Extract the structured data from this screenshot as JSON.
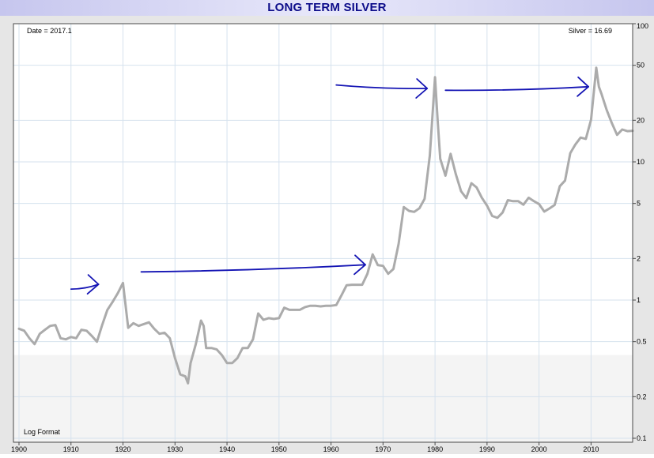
{
  "title": "LONG TERM SILVER",
  "date_readout": "Date = 2017.1",
  "value_readout": "Silver = 16.69",
  "scale_note": "Log Format",
  "colors": {
    "price_line": "#ababab",
    "annotation": "#1414b4",
    "grid": "#d6e2ee",
    "title_text": "#0d0d8a"
  },
  "chart_data": {
    "type": "line",
    "title": "LONG TERM SILVER",
    "y_scale": "log",
    "xlim": [
      1900,
      2018
    ],
    "ylim": [
      0.1,
      100
    ],
    "x_ticks": [
      1900,
      1910,
      1920,
      1930,
      1940,
      1950,
      1960,
      1970,
      1980,
      1990,
      2000,
      2010
    ],
    "y_ticks": [
      100,
      50,
      20,
      10,
      5,
      2,
      1,
      0.5,
      0.2,
      0.1
    ],
    "x_tick_labels": [
      "1900",
      "1910",
      "1920",
      "1930",
      "1940",
      "1950",
      "1960",
      "1970",
      "1980",
      "1990",
      "2000",
      "2010"
    ],
    "y_tick_labels": [
      "100",
      "50",
      "20",
      "10",
      "5",
      "2",
      "1",
      "0.5",
      "0.2",
      "0.1"
    ],
    "grid": true,
    "series": [
      {
        "x": [
          1900,
          1901,
          1902,
          1903,
          1904,
          1905,
          1906,
          1907,
          1908,
          1909,
          1910,
          1911,
          1912,
          1913,
          1914,
          1915,
          1916,
          1917,
          1918,
          1919,
          1920,
          1921,
          1922,
          1923,
          1924,
          1925,
          1926,
          1927,
          1928,
          1929,
          1930,
          1931,
          1932,
          1932.5,
          1933,
          1934,
          1935,
          1935.5,
          1936,
          1937,
          1938,
          1939,
          1940,
          1941,
          1942,
          1943,
          1944,
          1945,
          1946,
          1947,
          1948,
          1949,
          1950,
          1951,
          1952,
          1953,
          1954,
          1955,
          1956,
          1957,
          1958,
          1959,
          1960,
          1961,
          1962,
          1963,
          1964,
          1965,
          1966,
          1967,
          1968,
          1969,
          1970,
          1971,
          1972,
          1973,
          1974,
          1975,
          1976,
          1977,
          1978,
          1979,
          1980,
          1980.5,
          1981,
          1982,
          1983,
          1984,
          1985,
          1986,
          1987,
          1988,
          1989,
          1990,
          1991,
          1992,
          1993,
          1994,
          1995,
          1996,
          1997,
          1998,
          1999,
          2000,
          2001,
          2002,
          2003,
          2004,
          2005,
          2006,
          2007,
          2008,
          2009,
          2010,
          2011,
          2011.5,
          2012,
          2013,
          2014,
          2015,
          2016,
          2017,
          2018
        ],
        "y": [
          0.62,
          0.6,
          0.53,
          0.48,
          0.57,
          0.61,
          0.65,
          0.66,
          0.53,
          0.52,
          0.54,
          0.53,
          0.61,
          0.6,
          0.55,
          0.5,
          0.66,
          0.85,
          0.97,
          1.12,
          1.33,
          0.63,
          0.68,
          0.65,
          0.67,
          0.69,
          0.62,
          0.57,
          0.58,
          0.53,
          0.38,
          0.29,
          0.28,
          0.25,
          0.35,
          0.48,
          0.71,
          0.65,
          0.45,
          0.45,
          0.44,
          0.4,
          0.35,
          0.35,
          0.38,
          0.45,
          0.45,
          0.52,
          0.8,
          0.72,
          0.74,
          0.73,
          0.74,
          0.88,
          0.85,
          0.85,
          0.85,
          0.89,
          0.91,
          0.91,
          0.9,
          0.91,
          0.91,
          0.92,
          1.08,
          1.28,
          1.29,
          1.29,
          1.29,
          1.55,
          2.14,
          1.79,
          1.77,
          1.55,
          1.68,
          2.56,
          4.71,
          4.42,
          4.35,
          4.62,
          5.4,
          11.09,
          41.0,
          20.0,
          10.52,
          7.95,
          11.44,
          8.14,
          6.14,
          5.47,
          7.01,
          6.53,
          5.5,
          4.82,
          4.06,
          3.94,
          4.3,
          5.28,
          5.19,
          5.2,
          4.9,
          5.5,
          5.2,
          4.95,
          4.37,
          4.6,
          4.88,
          6.67,
          7.32,
          11.55,
          13.4,
          14.99,
          14.67,
          20.19,
          48.0,
          35.0,
          31.15,
          23.79,
          19.08,
          15.68,
          17.14,
          16.69,
          16.8
        ]
      }
    ],
    "annotations": [
      {
        "type": "arrow",
        "from_x": 1923.5,
        "from_y": 1.6,
        "to_x": 1966.6,
        "to_y": 1.8
      },
      {
        "type": "arrow",
        "from_x": 1961.0,
        "from_y": 36.0,
        "to_x": 1978.5,
        "to_y": 34.0
      },
      {
        "type": "arrow",
        "from_x": 1982.0,
        "from_y": 33.0,
        "to_x": 2009.5,
        "to_y": 35.0
      },
      {
        "type": "arrow",
        "from_x": 1910.0,
        "from_y": 1.2,
        "to_x": 1915.3,
        "to_y": 1.3
      }
    ]
  }
}
